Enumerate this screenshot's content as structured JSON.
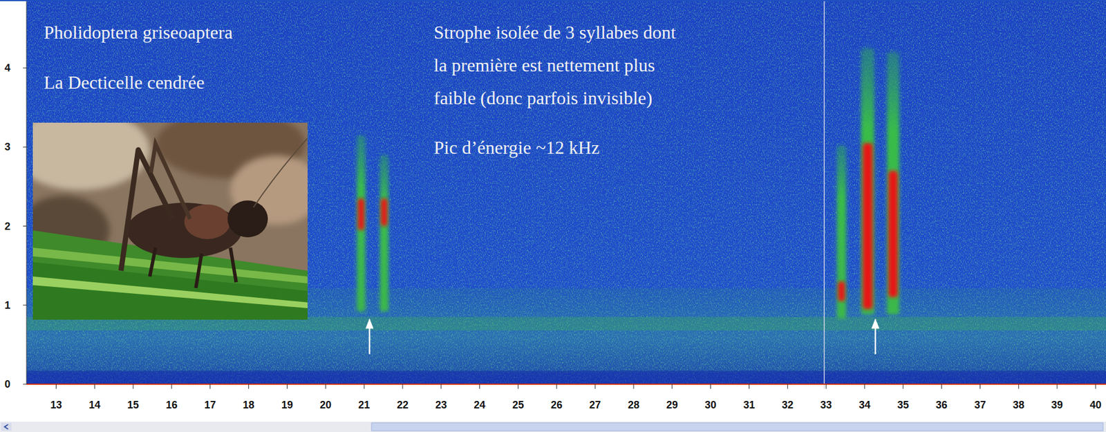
{
  "chart_data": {
    "type": "spectrogram",
    "title": "Pholidoptera griseoaptera",
    "subtitle": "La Decticelle cendrée",
    "annotation_lines": [
      "Strophe isolée de 3 syllabes dont",
      "la première est nettement plus",
      "faible (donc parfois invisible)"
    ],
    "annotation_peak": "Pic d’énergie ~12 kHz",
    "xlim": [
      12.23,
      40.27
    ],
    "xticks": [
      13,
      14,
      15,
      16,
      17,
      18,
      19,
      20,
      21,
      22,
      23,
      24,
      25,
      26,
      27,
      28,
      29,
      30,
      31,
      32,
      33,
      34,
      35,
      36,
      37,
      38,
      39,
      40
    ],
    "ylim": [
      0,
      4.86
    ],
    "yticks": [
      0,
      1,
      2,
      3,
      4
    ],
    "cursor": 32.95,
    "arrows": [
      21.14,
      34.28
    ],
    "syllables": [
      {
        "x": 20.92,
        "width": 0.22,
        "freq_range": [
          0.92,
          3.15
        ],
        "peak_range": [
          1.95,
          2.35
        ]
      },
      {
        "x": 21.52,
        "width": 0.22,
        "freq_range": [
          0.92,
          2.9
        ],
        "peak_range": [
          2.0,
          2.35
        ]
      },
      {
        "x": 33.4,
        "width": 0.24,
        "freq_range": [
          0.83,
          3.02
        ],
        "peak_range": [
          1.05,
          1.3
        ]
      },
      {
        "x": 34.08,
        "width": 0.34,
        "freq_range": [
          0.88,
          4.25
        ],
        "peak_range": [
          0.95,
          3.05
        ]
      },
      {
        "x": 34.74,
        "width": 0.32,
        "freq_range": [
          0.88,
          4.2
        ],
        "peak_range": [
          1.1,
          2.7
        ]
      }
    ]
  }
}
